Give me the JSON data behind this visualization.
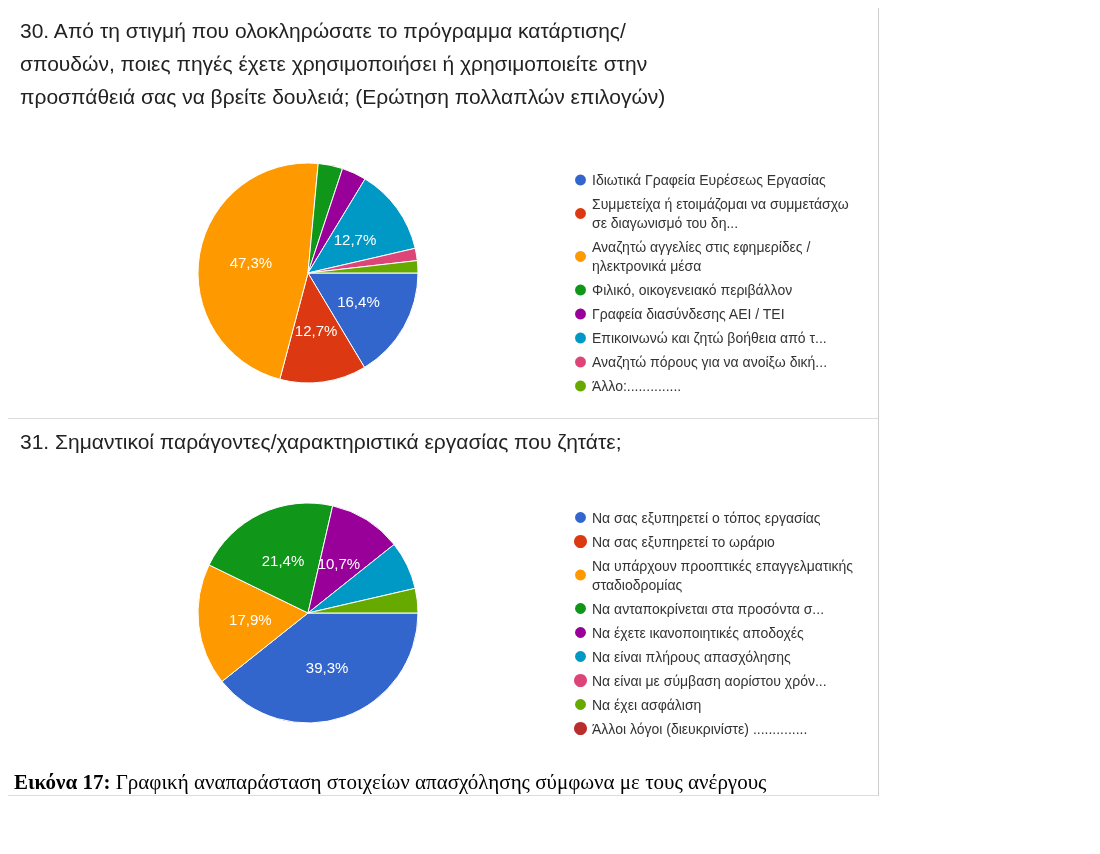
{
  "chart_data": [
    {
      "type": "pie",
      "title": "30. Από τη στιγμή που ολοκληρώσατε το πρόγραμμα κατάρτισης/ σπουδών, ποιες πηγές έχετε χρησιμοποιήσει ή χρησιμοποιείτε στην προσπάθειά σας να βρείτε δουλειά; (Ερώτηση πολλαπλών επιλογών)",
      "categories": [
        "Ιδιωτικά Γραφεία Ευρέσεως Εργασίας",
        "Συμμετείχα ή ετοιμάζομαι να συμμετάσχω σε διαγωνισμό του δη...",
        "Αναζητώ αγγελίες στις εφημερίδες / ηλεκτρονικά μέσα",
        "Φιλικό, οικογενειακό περιβάλλον",
        "Γραφεία διασύνδεσης ΑΕΙ / ΤΕΙ",
        "Επικοινωνώ και ζητώ βοήθεια από τ...",
        "Αναζητώ πόρους για να ανοίξω δική...",
        "Άλλο:.............."
      ],
      "values": [
        16.4,
        12.7,
        47.3,
        3.6,
        3.6,
        12.7,
        1.8,
        1.8
      ],
      "value_labels": [
        "16,4%",
        "12,7%",
        "47,3%",
        null,
        null,
        "12,7%",
        null,
        null
      ],
      "colors": [
        "#3366cc",
        "#dc3912",
        "#ff9900",
        "#109618",
        "#990099",
        "#0099c6",
        "#dd4477",
        "#66aa00"
      ],
      "legend": "right"
    },
    {
      "type": "pie",
      "title": "31. Σημαντικοί παράγοντες/χαρακτηριστικά εργασίας που ζητάτε;",
      "categories": [
        "Να σας εξυπηρετεί ο τόπος εργασίας",
        "Να σας εξυπηρετεί το ωράριο",
        "Να υπάρχουν προοπτικές επαγγελματικής σταδιοδρομίας",
        "Να ανταποκρίνεται στα προσόντα σ...",
        "Να έχετε ικανοποιητικές αποδοχές",
        "Να είναι πλήρους απασχόλησης",
        "Να είναι με σύμβαση αορίστου χρόν...",
        "Να έχει ασφάλιση",
        "Άλλοι λόγοι (διευκρινίστε) .............."
      ],
      "values": [
        39.3,
        0,
        17.9,
        21.4,
        10.7,
        7.1,
        0,
        3.6,
        0
      ],
      "value_labels": [
        "39,3%",
        null,
        "17,9%",
        "21,4%",
        "10,7%",
        null,
        null,
        null,
        null
      ],
      "colors": [
        "#3366cc",
        "#dc3912",
        "#ff9900",
        "#109618",
        "#990099",
        "#0099c6",
        "#dd4477",
        "#66aa00",
        "#b82e2e"
      ],
      "legend": "right",
      "annotations": [
        "Εικόνα 17: Γραφική αναπαράσταση στοιχείων απασχόλησης σύμφωνα με τους ανέργους"
      ]
    }
  ]
}
